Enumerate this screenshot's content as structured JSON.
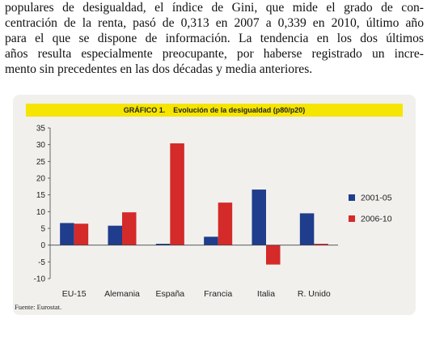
{
  "paragraph": {
    "lines": [
      "populares de desigualdad, el índice de Gini, que mide el grado de con-",
      "centración de la renta, pasó de 0,313 en 2007 a 0,339 en 2010, último año",
      "para el que se dispone de información. La tendencia en los dos últimos",
      "años resulta especialmente preocupante, por haberse registrado un incre-",
      "mento sin precedentes en las dos décadas y media anteriores."
    ]
  },
  "figure": {
    "number": "GRÁFICO 1.",
    "title": "Evolución de la desigualdad (p80/p20)",
    "source": "Fuente: Eurostat."
  },
  "colors": {
    "series_2001": "#1f3d8c",
    "series_2006": "#d42a2a",
    "title_bar": "#f5e500",
    "panel": "#f1f0ed"
  },
  "chart_data": {
    "type": "bar",
    "title": "Evolución de la desigualdad (p80/p20)",
    "categories": [
      "EU-15",
      "Alemania",
      "España",
      "Francia",
      "Italia",
      "R. Unido"
    ],
    "series": [
      {
        "name": "2001-05",
        "values": [
          6.6,
          5.8,
          0.4,
          2.5,
          16.6,
          9.5
        ]
      },
      {
        "name": "2006-10",
        "values": [
          6.4,
          9.8,
          30.4,
          12.7,
          -5.8,
          0.4
        ]
      }
    ],
    "ylim": [
      -10,
      35
    ],
    "yticks": [
      -10,
      -5,
      0,
      5,
      10,
      15,
      20,
      25,
      30,
      35
    ],
    "ytick_labels": [
      "-10",
      "-5",
      "0",
      "5",
      "10",
      "15",
      "20",
      "25",
      "30",
      "35"
    ],
    "legend_position": "right",
    "grid": false
  }
}
